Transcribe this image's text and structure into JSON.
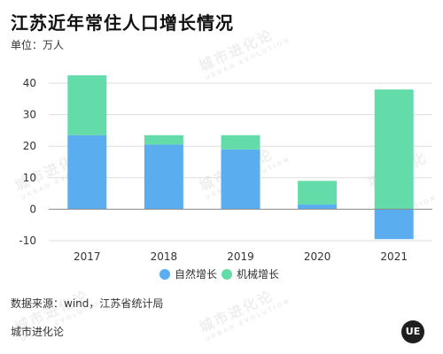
{
  "header": {
    "title": "江苏近年常住人口增长情况",
    "unit": "单位：万人"
  },
  "footer": {
    "source": "数据来源：wind，江苏省统计局",
    "brand": "城市进化论",
    "logo_text": "UE"
  },
  "watermark": {
    "text": "城市进化论",
    "subtext": "URBAN EVOLUTION"
  },
  "colors": {
    "natural": "#5aaef0",
    "mechanical": "#63dcaa",
    "grid": "#dddddd",
    "axis": "#888888"
  },
  "chart_data": {
    "type": "bar",
    "stacked": true,
    "categories": [
      "2017",
      "2018",
      "2019",
      "2020",
      "2021"
    ],
    "series": [
      {
        "name": "自然增长",
        "values": [
          23.5,
          20.5,
          19,
          1.5,
          -9.5
        ]
      },
      {
        "name": "机械增长",
        "values": [
          19,
          3,
          4.5,
          7.5,
          38
        ]
      }
    ],
    "ylim": [
      -10,
      40
    ],
    "yticks": [
      -10,
      0,
      10,
      20,
      30,
      40
    ],
    "grid": true,
    "legend": "bottom"
  }
}
